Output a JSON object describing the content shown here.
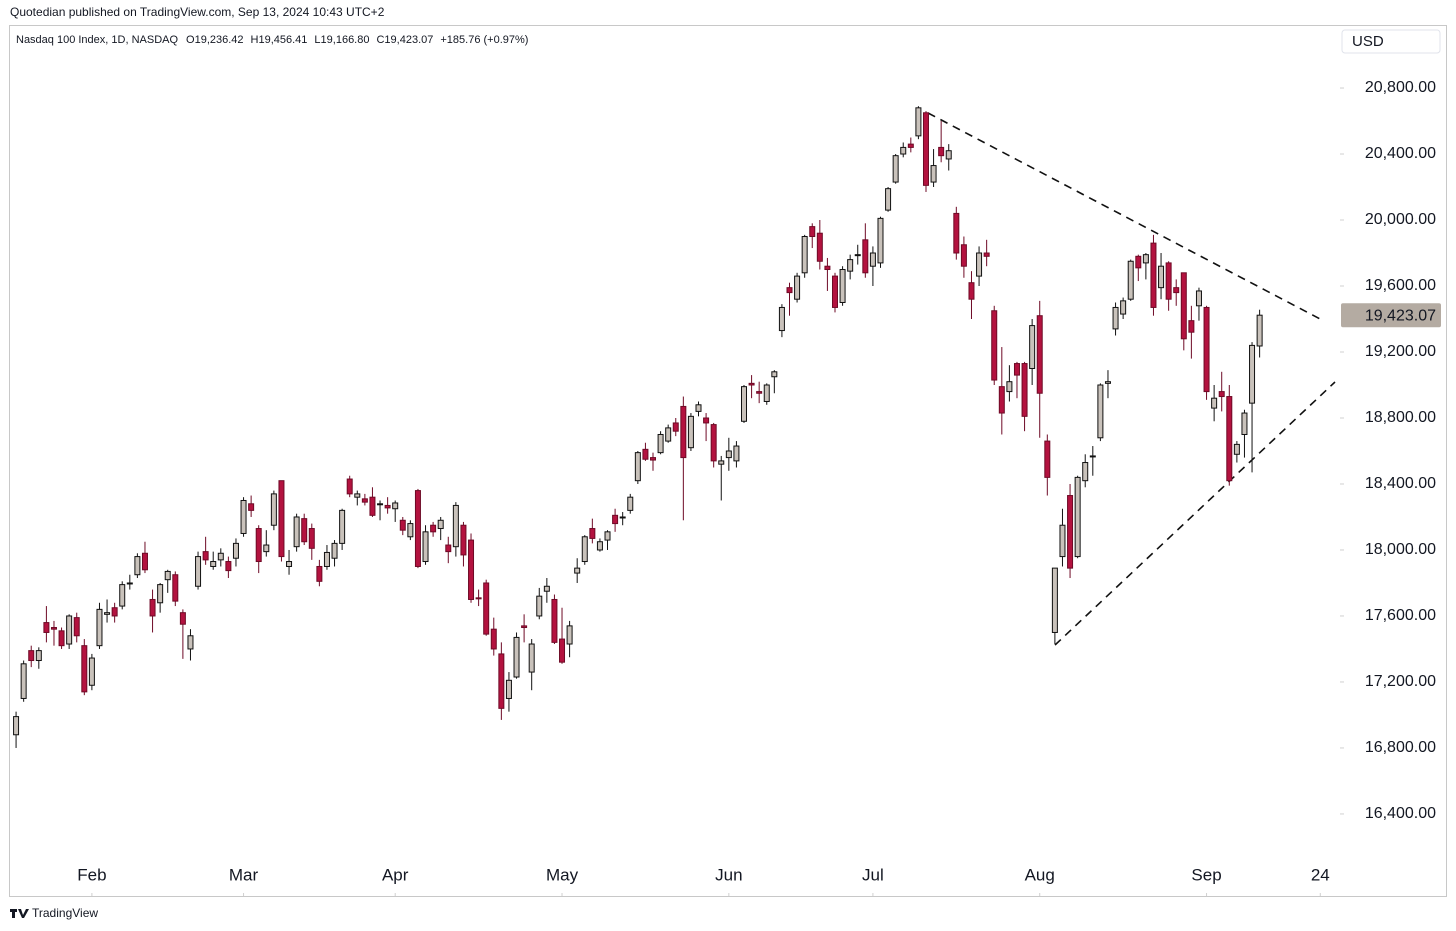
{
  "header": {
    "published": "Quotedian published on TradingView.com, Sep 13, 2024 10:43 UTC+2",
    "footer_brand": "TradingView"
  },
  "chart_data": {
    "type": "candlestick",
    "title": "Nasdaq 100 Index, 1D, NASDAQ",
    "ohlc_text": [
      "O19,236.42",
      "H19,456.41",
      "L19,166.80",
      "C19,423.07",
      "+185.76 (+0.97%)"
    ],
    "currency": "USD",
    "last_price_label": "19,423.07",
    "up_color": "#c9c2bb",
    "down_color": "#b3123f",
    "up_border": "#111111",
    "down_border": "#6e0a26",
    "last_label_color": "#b4aba2",
    "xlim": [
      -0.8,
      174.6
    ],
    "xticks": [
      {
        "value": 10,
        "label": "Feb"
      },
      {
        "value": 30,
        "label": "Mar"
      },
      {
        "value": 50,
        "label": "Apr"
      },
      {
        "value": 72,
        "label": "May"
      },
      {
        "value": 94,
        "label": "Jun"
      },
      {
        "value": 113,
        "label": "Jul"
      },
      {
        "value": 135,
        "label": "Aug"
      },
      {
        "value": 157,
        "label": "Sep"
      },
      {
        "value": 172,
        "label": "24"
      }
    ],
    "ylim": [
      16133,
      21182
    ],
    "yticks": [
      {
        "value": 16400,
        "label": "16,400.00"
      },
      {
        "value": 16800,
        "label": "16,800.00"
      },
      {
        "value": 17200,
        "label": "17,200.00"
      },
      {
        "value": 17600,
        "label": "17,600.00"
      },
      {
        "value": 18000,
        "label": "18,000.00"
      },
      {
        "value": 18400,
        "label": "18,400.00"
      },
      {
        "value": 18800,
        "label": "18,800.00"
      },
      {
        "value": 19200,
        "label": "19,200.00"
      },
      {
        "value": 19600,
        "label": "19,600.00"
      },
      {
        "value": 20000,
        "label": "20,000.00"
      },
      {
        "value": 20400,
        "label": "20,400.00"
      },
      {
        "value": 20800,
        "label": "20,800.00"
      }
    ],
    "open": [
      16880,
      17100,
      17390,
      17330,
      17560,
      17530,
      17510,
      17430,
      17590,
      17420,
      17180,
      17420,
      17610,
      17650,
      17660,
      17800,
      17850,
      17980,
      17700,
      17680,
      17820,
      17850,
      17620,
      17400,
      17780,
      17990,
      17900,
      17940,
      17930,
      17950,
      18100,
      18280,
      18130,
      17990,
      18150,
      18420,
      17900,
      18020,
      18190,
      18130,
      17900,
      17900,
      17950,
      18040,
      18430,
      18320,
      18310,
      18320,
      18280,
      18270,
      18250,
      18180,
      18080,
      18360,
      17930,
      18150,
      18130,
      18030,
      18020,
      18150,
      18060,
      17710,
      17800,
      17520,
      17370,
      17100,
      17230,
      17540,
      17260,
      17600,
      17750,
      17700,
      17460,
      17430,
      17860,
      17930,
      18130,
      18000,
      18060,
      18210,
      18200,
      18240,
      18420,
      18610,
      18560,
      18590,
      18660,
      18770,
      18870,
      18620,
      18840,
      18800,
      18760,
      18520,
      18560,
      18540,
      18780,
      19010,
      18960,
      18900,
      19050,
      19330,
      19590,
      19520,
      19680,
      19960,
      19920,
      19720,
      19660,
      19500,
      19690,
      19790,
      19880,
      19720,
      19740,
      20060,
      20230,
      20400,
      20460,
      20510,
      20650,
      20230,
      20440,
      20370,
      20040,
      19850,
      19620,
      19660,
      19800,
      19450,
      18990,
      18960,
      19130,
      19130,
      19100,
      19420,
      18660,
      17500,
      17960,
      18330,
      17960,
      18420,
      18570,
      18680,
      19010,
      19340,
      19430,
      19520,
      19780,
      19740,
      19860,
      19590,
      19740,
      19590,
      19680,
      19390,
      19480,
      19470,
      18860,
      18960,
      18930,
      18580,
      18700,
      18890,
      19236.42
    ],
    "high": [
      17020,
      17330,
      17420,
      17410,
      17660,
      17570,
      17530,
      17610,
      17620,
      17460,
      17370,
      17680,
      17700,
      17680,
      17810,
      17850,
      17980,
      18050,
      17760,
      17800,
      17880,
      17870,
      17640,
      17520,
      17990,
      18080,
      17990,
      18010,
      17960,
      18070,
      18320,
      18330,
      18150,
      18120,
      18360,
      18420,
      18000,
      18220,
      18220,
      18160,
      17940,
      18030,
      18060,
      18250,
      18450,
      18360,
      18340,
      18380,
      18300,
      18320,
      18300,
      18200,
      18180,
      18370,
      18150,
      18170,
      18200,
      18080,
      18290,
      18170,
      18100,
      17760,
      17820,
      17590,
      17440,
      17260,
      17500,
      17610,
      17460,
      17770,
      17830,
      17730,
      17650,
      17570,
      17950,
      18090,
      18190,
      18070,
      18120,
      18250,
      18230,
      18340,
      18600,
      18650,
      18590,
      18720,
      18760,
      18800,
      18930,
      18830,
      18900,
      18830,
      18770,
      18570,
      18680,
      18660,
      19000,
      19060,
      19020,
      19010,
      19090,
      19490,
      19620,
      19680,
      19910,
      19980,
      20000,
      19770,
      19680,
      19720,
      19790,
      19850,
      19980,
      19840,
      20020,
      20200,
      20400,
      20470,
      20500,
      20690,
      20660,
      20430,
      20600,
      20460,
      20080,
      19900,
      19690,
      19840,
      19880,
      19480,
      19230,
      19120,
      19140,
      19140,
      19400,
      19510,
      18700,
      17890,
      18250,
      18400,
      18450,
      18580,
      18630,
      19010,
      19090,
      19500,
      19530,
      19760,
      19790,
      19800,
      19910,
      19800,
      19750,
      19640,
      19680,
      19480,
      19590,
      19480,
      19000,
      19080,
      19000,
      18660,
      18850,
      19260,
      19456.41
    ],
    "low": [
      16800,
      17080,
      17290,
      17280,
      17440,
      17420,
      17400,
      17400,
      17440,
      17120,
      17150,
      17400,
      17560,
      17560,
      17640,
      17760,
      17830,
      17860,
      17500,
      17620,
      17740,
      17660,
      17340,
      17330,
      17760,
      17910,
      17880,
      17900,
      17830,
      17900,
      18080,
      18200,
      17860,
      17960,
      18120,
      17930,
      17850,
      17990,
      18030,
      17940,
      17780,
      17880,
      17900,
      18000,
      18320,
      18270,
      18270,
      18200,
      18180,
      18220,
      18170,
      18090,
      18060,
      17890,
      17910,
      18080,
      18060,
      17920,
      17960,
      17900,
      17680,
      17660,
      17480,
      17360,
      16970,
      17020,
      17220,
      17440,
      17150,
      17580,
      17680,
      17430,
      17310,
      17350,
      17800,
      17910,
      18040,
      17990,
      18000,
      18110,
      18150,
      18220,
      18400,
      18540,
      18480,
      18580,
      18650,
      18690,
      18180,
      18600,
      18810,
      18660,
      18500,
      18300,
      18480,
      18500,
      18770,
      18920,
      18890,
      18880,
      18950,
      19290,
      19420,
      19500,
      19650,
      19830,
      19700,
      19570,
      19440,
      19480,
      19640,
      19730,
      19650,
      19600,
      19710,
      20050,
      20220,
      20380,
      20410,
      20490,
      20170,
      20200,
      20350,
      20300,
      19760,
      19650,
      19400,
      19600,
      19720,
      19000,
      18700,
      18900,
      18920,
      18720,
      19000,
      18680,
      18330,
      17430,
      17900,
      17830,
      17950,
      18380,
      18450,
      18660,
      18920,
      19300,
      19400,
      19510,
      19630,
      19640,
      19420,
      19520,
      19450,
      19480,
      19210,
      19160,
      19390,
      18910,
      18780,
      18840,
      18390,
      18530,
      18560,
      18470,
      19166.8
    ],
    "close": [
      16990,
      17310,
      17330,
      17390,
      17500,
      17520,
      17420,
      17600,
      17480,
      17140,
      17345,
      17640,
      17620,
      17600,
      17790,
      17800,
      17960,
      17880,
      17600,
      17790,
      17870,
      17690,
      17550,
      17480,
      17960,
      17940,
      17930,
      17980,
      17875,
      18040,
      18300,
      18240,
      17930,
      18030,
      18340,
      17960,
      17930,
      18200,
      18050,
      18010,
      17810,
      17985,
      18040,
      18240,
      18340,
      18340,
      18290,
      18210,
      18280,
      18255,
      18285,
      18120,
      18160,
      17900,
      18110,
      18110,
      18180,
      17990,
      18270,
      17970,
      17700,
      17706,
      17490,
      17400,
      17040,
      17210,
      17470,
      17530,
      17430,
      17720,
      17780,
      17440,
      17320,
      17540,
      17890,
      18080,
      18070,
      18050,
      18110,
      18160,
      18200,
      18320,
      18590,
      18550,
      18545,
      18700,
      18740,
      18720,
      18560,
      18810,
      18880,
      18770,
      18540,
      18540,
      18600,
      18630,
      18990,
      19000,
      18950,
      19000,
      19080,
      19470,
      19560,
      19660,
      19900,
      19900,
      19750,
      19700,
      19470,
      19700,
      19760,
      19790,
      19680,
      19800,
      20010,
      20190,
      20390,
      20440,
      20440,
      20680,
      20210,
      20330,
      20390,
      20420,
      19800,
      19720,
      19520,
      19800,
      19780,
      19030,
      18830,
      19020,
      19060,
      18810,
      19360,
      18950,
      18440,
      17890,
      18150,
      17890,
      18440,
      18530,
      18570,
      19000,
      19020,
      19470,
      19510,
      19750,
      19710,
      19790,
      19470,
      19720,
      19520,
      19560,
      19280,
      19320,
      19570,
      18960,
      18920,
      18930,
      18420,
      18640,
      18830,
      19240,
      19423.07
    ]
  }
}
